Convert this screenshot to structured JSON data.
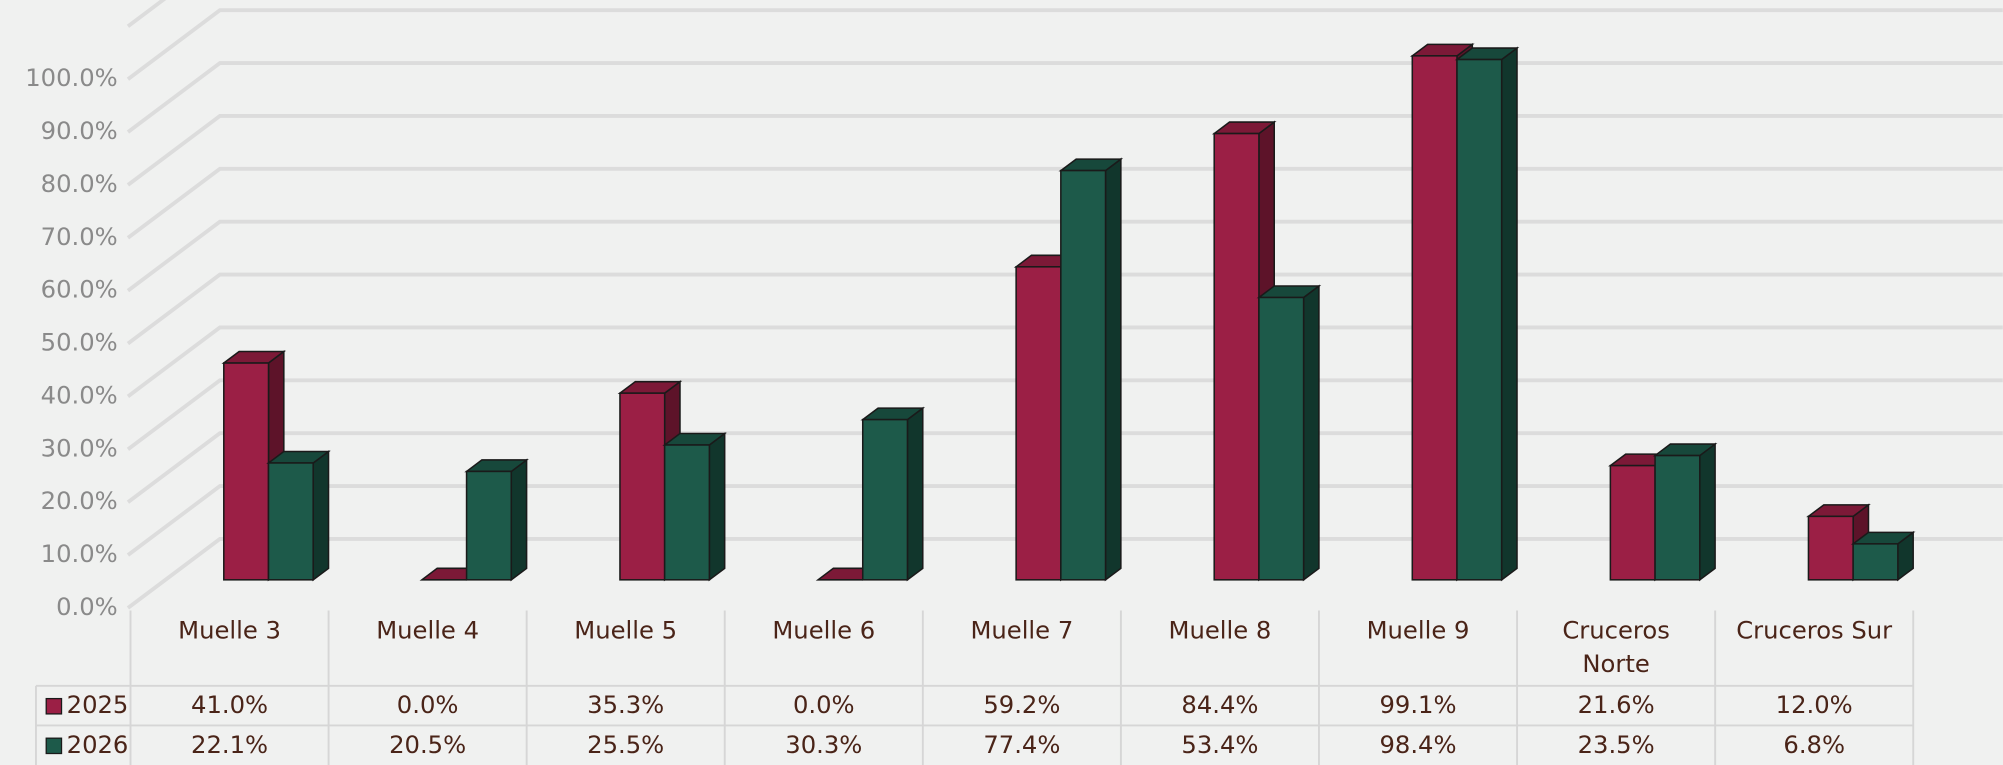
{
  "chart_data": {
    "type": "bar3d",
    "categories": [
      "Muelle 3",
      "Muelle 4",
      "Muelle 5",
      "Muelle 6",
      "Muelle 7",
      "Muelle 8",
      "Muelle 9",
      "Cruceros Norte",
      "Cruceros Sur"
    ],
    "series": [
      {
        "name": "2025",
        "color": "#9b1f45",
        "values": [
          41.0,
          0.0,
          35.3,
          0.0,
          59.2,
          84.4,
          99.1,
          21.6,
          12.0
        ],
        "value_labels": [
          "41.0%",
          "0.0%",
          "35.3%",
          "0.0%",
          "59.2%",
          "84.4%",
          "99.1%",
          "21.6%",
          "12.0%"
        ]
      },
      {
        "name": "2026",
        "color": "#1d5a4a",
        "values": [
          22.1,
          20.5,
          25.5,
          30.3,
          77.4,
          53.4,
          98.4,
          23.5,
          6.8
        ],
        "value_labels": [
          "22.1%",
          "20.5%",
          "25.5%",
          "30.3%",
          "77.4%",
          "53.4%",
          "98.4%",
          "23.5%",
          "6.8%"
        ]
      }
    ],
    "ylim": [
      0,
      110
    ],
    "yticks": [
      {
        "value": 0,
        "label": "0.0%"
      },
      {
        "value": 10,
        "label": "10.0%"
      },
      {
        "value": 20,
        "label": "20.0%"
      },
      {
        "value": 30,
        "label": "30.0%"
      },
      {
        "value": 40,
        "label": "40.0%"
      },
      {
        "value": 50,
        "label": "50.0%"
      },
      {
        "value": 60,
        "label": "60.0%"
      },
      {
        "value": 70,
        "label": "70.0%"
      },
      {
        "value": 80,
        "label": "80.0%"
      },
      {
        "value": 90,
        "label": "90.0%"
      },
      {
        "value": 100,
        "label": "100.0%"
      }
    ],
    "grid": true
  }
}
